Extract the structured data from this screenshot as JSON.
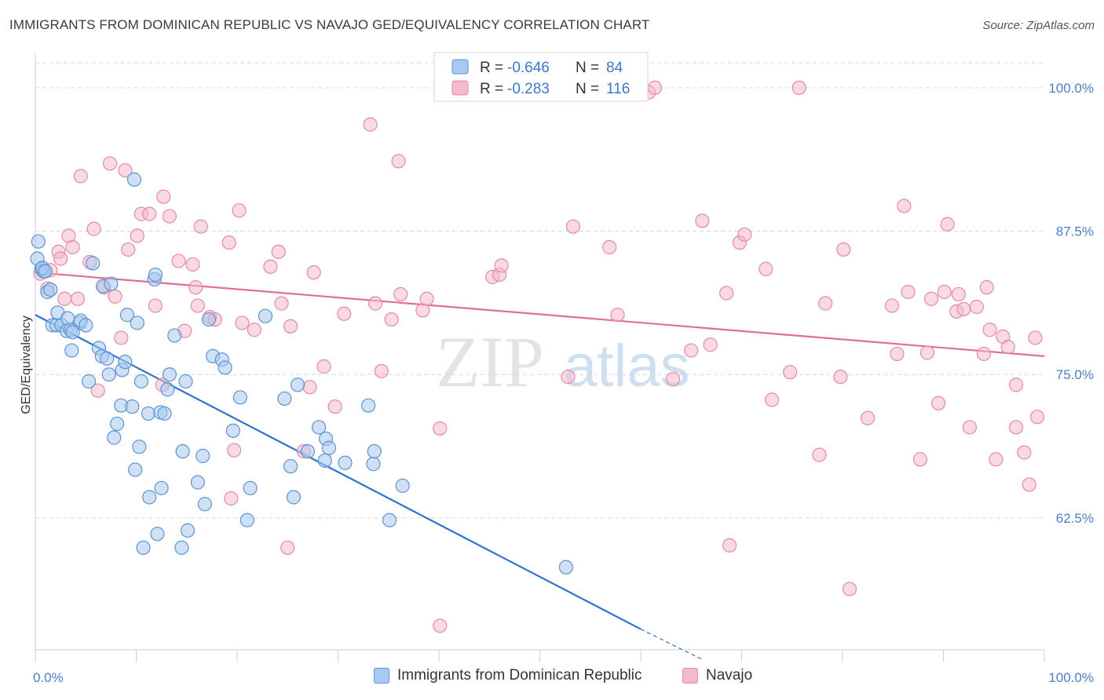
{
  "header": {
    "title": "IMMIGRANTS FROM DOMINICAN REPUBLIC VS NAVAJO GED/EQUIVALENCY CORRELATION CHART",
    "source": "Source: ZipAtlas.com"
  },
  "watermark": {
    "zip": "ZIP",
    "atlas": "atlas"
  },
  "legend_top": {
    "rows": [
      {
        "r_label": "R =",
        "r_value": "-0.646",
        "n_label": "N =",
        "n_value": "84"
      },
      {
        "r_label": "R =",
        "r_value": "-0.283",
        "n_label": "N =",
        "n_value": "116"
      }
    ]
  },
  "colors": {
    "blue_fill": "#a9c9ef",
    "blue_stroke": "#5b93d6",
    "blue_line": "#2f72d0",
    "pink_fill": "#f4b9cc",
    "pink_stroke": "#e589a8",
    "pink_line": "#e06e95",
    "grid": "#d9d9d9",
    "tick_label": "#4a7fc8"
  },
  "chart_data": {
    "type": "scatter",
    "title": "IMMIGRANTS FROM DOMINICAN REPUBLIC VS NAVAJO GED/EQUIVALENCY CORRELATION CHART",
    "xlabel": "",
    "ylabel": "GED/Equivalency",
    "xlim": [
      0,
      100
    ],
    "ylim": [
      51,
      103
    ],
    "x_tick_labels": [
      "0.0%",
      "100.0%"
    ],
    "y_ticks": [
      62.5,
      75.0,
      87.5,
      100.0
    ],
    "y_tick_labels": [
      "62.5%",
      "75.0%",
      "87.5%",
      "100.0%"
    ],
    "grid": true,
    "legend_position": "bottom",
    "series": [
      {
        "name": "Immigrants from Dominican Republic",
        "r": -0.646,
        "n": 84,
        "trend": {
          "x0": 0,
          "y0": 80.2,
          "x1": 60,
          "y1": 52.8,
          "dash_x1": 66,
          "dash_y1": 50.2
        },
        "points": [
          [
            0.2,
            85.1
          ],
          [
            0.3,
            86.6
          ],
          [
            0.6,
            84.2
          ],
          [
            0.8,
            84.0
          ],
          [
            1.2,
            82.2
          ],
          [
            1.5,
            82.4
          ],
          [
            1.7,
            79.3
          ],
          [
            2.1,
            79.3
          ],
          [
            2.2,
            80.4
          ],
          [
            2.6,
            79.3
          ],
          [
            3.1,
            78.8
          ],
          [
            3.2,
            79.9
          ],
          [
            3.5,
            78.9
          ],
          [
            3.6,
            77.1
          ],
          [
            4.4,
            79.5
          ],
          [
            4.5,
            79.7
          ],
          [
            5.0,
            79.3
          ],
          [
            5.3,
            74.4
          ],
          [
            5.7,
            84.7
          ],
          [
            6.3,
            77.3
          ],
          [
            6.6,
            76.6
          ],
          [
            6.7,
            82.7
          ],
          [
            7.1,
            76.4
          ],
          [
            7.3,
            75.0
          ],
          [
            7.5,
            82.9
          ],
          [
            7.8,
            69.5
          ],
          [
            8.1,
            70.7
          ],
          [
            8.5,
            72.3
          ],
          [
            8.6,
            75.4
          ],
          [
            8.9,
            76.1
          ],
          [
            9.1,
            80.2
          ],
          [
            9.6,
            72.2
          ],
          [
            9.8,
            92.0
          ],
          [
            9.9,
            66.7
          ],
          [
            10.1,
            79.5
          ],
          [
            10.3,
            68.7
          ],
          [
            10.5,
            74.4
          ],
          [
            10.7,
            59.9
          ],
          [
            11.2,
            71.6
          ],
          [
            11.3,
            64.3
          ],
          [
            11.8,
            83.3
          ],
          [
            11.9,
            83.7
          ],
          [
            12.1,
            61.1
          ],
          [
            12.4,
            71.7
          ],
          [
            12.5,
            65.1
          ],
          [
            12.8,
            71.6
          ],
          [
            13.1,
            73.7
          ],
          [
            13.3,
            75.0
          ],
          [
            13.8,
            78.4
          ],
          [
            14.5,
            59.9
          ],
          [
            14.6,
            68.3
          ],
          [
            14.9,
            74.4
          ],
          [
            15.1,
            61.4
          ],
          [
            16.1,
            65.6
          ],
          [
            16.6,
            67.9
          ],
          [
            16.8,
            63.7
          ],
          [
            17.2,
            79.8
          ],
          [
            17.6,
            76.6
          ],
          [
            18.5,
            76.3
          ],
          [
            18.8,
            75.6
          ],
          [
            19.6,
            70.1
          ],
          [
            20.3,
            73.0
          ],
          [
            21.0,
            62.3
          ],
          [
            21.3,
            65.1
          ],
          [
            22.8,
            80.1
          ],
          [
            24.7,
            72.9
          ],
          [
            25.3,
            67.0
          ],
          [
            25.6,
            64.3
          ],
          [
            26.0,
            74.1
          ],
          [
            27.0,
            68.3
          ],
          [
            28.1,
            70.4
          ],
          [
            28.7,
            67.5
          ],
          [
            28.8,
            69.4
          ],
          [
            29.1,
            68.6
          ],
          [
            30.7,
            67.3
          ],
          [
            33.0,
            72.3
          ],
          [
            33.5,
            67.2
          ],
          [
            33.6,
            68.3
          ],
          [
            35.1,
            62.3
          ],
          [
            36.4,
            65.3
          ],
          [
            52.6,
            58.2
          ],
          [
            0.7,
            84.3
          ],
          [
            1.0,
            84.0
          ],
          [
            3.7,
            78.7
          ]
        ]
      },
      {
        "name": "Navajo",
        "r": -0.283,
        "n": 116,
        "trend": {
          "x0": 0,
          "y0": 83.9,
          "x1": 100,
          "y1": 76.6
        },
        "points": [
          [
            0.5,
            83.8
          ],
          [
            1.2,
            82.5
          ],
          [
            1.5,
            84.1
          ],
          [
            2.3,
            85.7
          ],
          [
            2.5,
            85.1
          ],
          [
            2.9,
            81.6
          ],
          [
            3.3,
            87.1
          ],
          [
            3.7,
            86.1
          ],
          [
            4.2,
            81.6
          ],
          [
            4.5,
            92.3
          ],
          [
            5.4,
            84.8
          ],
          [
            5.8,
            87.7
          ],
          [
            6.2,
            73.6
          ],
          [
            6.8,
            82.6
          ],
          [
            7.4,
            93.4
          ],
          [
            7.9,
            81.8
          ],
          [
            8.5,
            78.2
          ],
          [
            8.9,
            92.8
          ],
          [
            9.2,
            85.9
          ],
          [
            10.1,
            87.1
          ],
          [
            10.5,
            89.0
          ],
          [
            11.3,
            89.0
          ],
          [
            11.9,
            81.0
          ],
          [
            12.6,
            74.1
          ],
          [
            12.7,
            90.5
          ],
          [
            13.3,
            88.8
          ],
          [
            14.2,
            84.9
          ],
          [
            14.8,
            78.8
          ],
          [
            15.6,
            84.6
          ],
          [
            15.9,
            82.6
          ],
          [
            16.1,
            81.0
          ],
          [
            16.4,
            87.9
          ],
          [
            17.3,
            80.0
          ],
          [
            17.8,
            79.8
          ],
          [
            19.2,
            86.5
          ],
          [
            19.4,
            64.2
          ],
          [
            19.7,
            68.4
          ],
          [
            20.2,
            89.3
          ],
          [
            20.5,
            79.5
          ],
          [
            21.7,
            78.9
          ],
          [
            23.3,
            84.4
          ],
          [
            24.1,
            85.7
          ],
          [
            24.4,
            81.2
          ],
          [
            25.0,
            59.9
          ],
          [
            25.3,
            79.2
          ],
          [
            26.6,
            68.3
          ],
          [
            27.2,
            73.9
          ],
          [
            27.6,
            83.9
          ],
          [
            28.6,
            75.7
          ],
          [
            29.7,
            72.2
          ],
          [
            30.6,
            80.3
          ],
          [
            33.2,
            96.8
          ],
          [
            33.7,
            81.2
          ],
          [
            34.3,
            75.3
          ],
          [
            35.3,
            79.8
          ],
          [
            36.0,
            93.6
          ],
          [
            36.2,
            82.0
          ],
          [
            38.4,
            80.6
          ],
          [
            38.8,
            81.6
          ],
          [
            40.1,
            53.1
          ],
          [
            40.1,
            70.3
          ],
          [
            45.3,
            83.5
          ],
          [
            46.0,
            83.7
          ],
          [
            46.2,
            84.5
          ],
          [
            52.5,
            100.0
          ],
          [
            52.8,
            74.8
          ],
          [
            53.3,
            87.9
          ],
          [
            56.9,
            86.1
          ],
          [
            57.7,
            80.2
          ],
          [
            60.8,
            99.6
          ],
          [
            61.4,
            100.0
          ],
          [
            63.2,
            74.6
          ],
          [
            65.0,
            77.1
          ],
          [
            66.1,
            88.4
          ],
          [
            66.9,
            77.6
          ],
          [
            68.5,
            82.1
          ],
          [
            68.8,
            60.1
          ],
          [
            69.8,
            86.5
          ],
          [
            70.3,
            87.2
          ],
          [
            72.4,
            84.2
          ],
          [
            73.0,
            72.8
          ],
          [
            74.8,
            75.2
          ],
          [
            75.7,
            100.0
          ],
          [
            77.7,
            68.0
          ],
          [
            78.3,
            81.2
          ],
          [
            79.8,
            74.8
          ],
          [
            80.1,
            85.9
          ],
          [
            80.7,
            56.3
          ],
          [
            82.5,
            71.2
          ],
          [
            84.9,
            81.0
          ],
          [
            85.4,
            76.8
          ],
          [
            86.1,
            89.7
          ],
          [
            86.5,
            82.2
          ],
          [
            87.7,
            67.6
          ],
          [
            88.4,
            76.9
          ],
          [
            88.8,
            81.6
          ],
          [
            89.5,
            72.5
          ],
          [
            90.1,
            82.2
          ],
          [
            90.4,
            88.1
          ],
          [
            91.5,
            82.0
          ],
          [
            91.3,
            80.5
          ],
          [
            92.0,
            80.7
          ],
          [
            92.6,
            70.4
          ],
          [
            93.3,
            80.9
          ],
          [
            94.0,
            76.8
          ],
          [
            94.3,
            82.6
          ],
          [
            94.6,
            78.9
          ],
          [
            95.2,
            67.6
          ],
          [
            95.9,
            78.3
          ],
          [
            96.4,
            77.4
          ],
          [
            97.2,
            70.4
          ],
          [
            97.2,
            74.1
          ],
          [
            98.0,
            68.2
          ],
          [
            98.5,
            65.4
          ],
          [
            99.3,
            71.3
          ],
          [
            99.1,
            78.2
          ]
        ]
      }
    ]
  },
  "legend_bottom": {
    "items": [
      {
        "label": "Immigrants from Dominican Republic"
      },
      {
        "label": "Navajo"
      }
    ]
  }
}
